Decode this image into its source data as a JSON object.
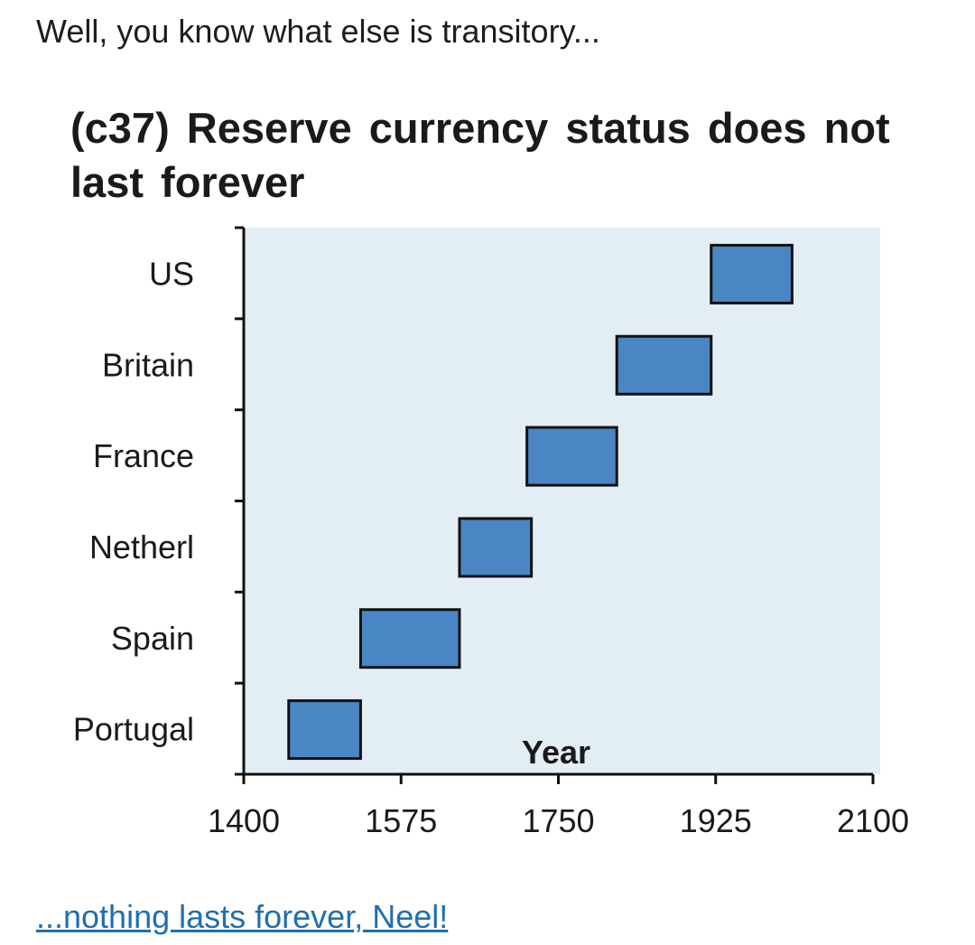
{
  "post": {
    "text": "Well, you know what else is transitory...",
    "link_text": "...nothing lasts forever, Neel!"
  },
  "chart_data": {
    "type": "bar",
    "title": "(c37) Reserve currency status does not last forever",
    "xlabel": "Year",
    "ylabel": "",
    "categories": [
      "Portugal",
      "Spain",
      "Netherl",
      "France",
      "Britain",
      "US"
    ],
    "ranges": [
      {
        "name": "Portugal",
        "start": 1450,
        "end": 1530
      },
      {
        "name": "Spain",
        "start": 1530,
        "end": 1640
      },
      {
        "name": "Netherl",
        "start": 1640,
        "end": 1720
      },
      {
        "name": "France",
        "start": 1715,
        "end": 1815
      },
      {
        "name": "Britain",
        "start": 1815,
        "end": 1920
      },
      {
        "name": "US",
        "start": 1920,
        "end": 2010
      }
    ],
    "xlim": [
      1400,
      2100
    ],
    "xticks": [
      1400,
      1575,
      1750,
      1925,
      2100
    ],
    "colors": {
      "bar_fill": "#4a86c4",
      "bar_stroke": "#111111",
      "plot_background": "#e3edf4"
    }
  }
}
